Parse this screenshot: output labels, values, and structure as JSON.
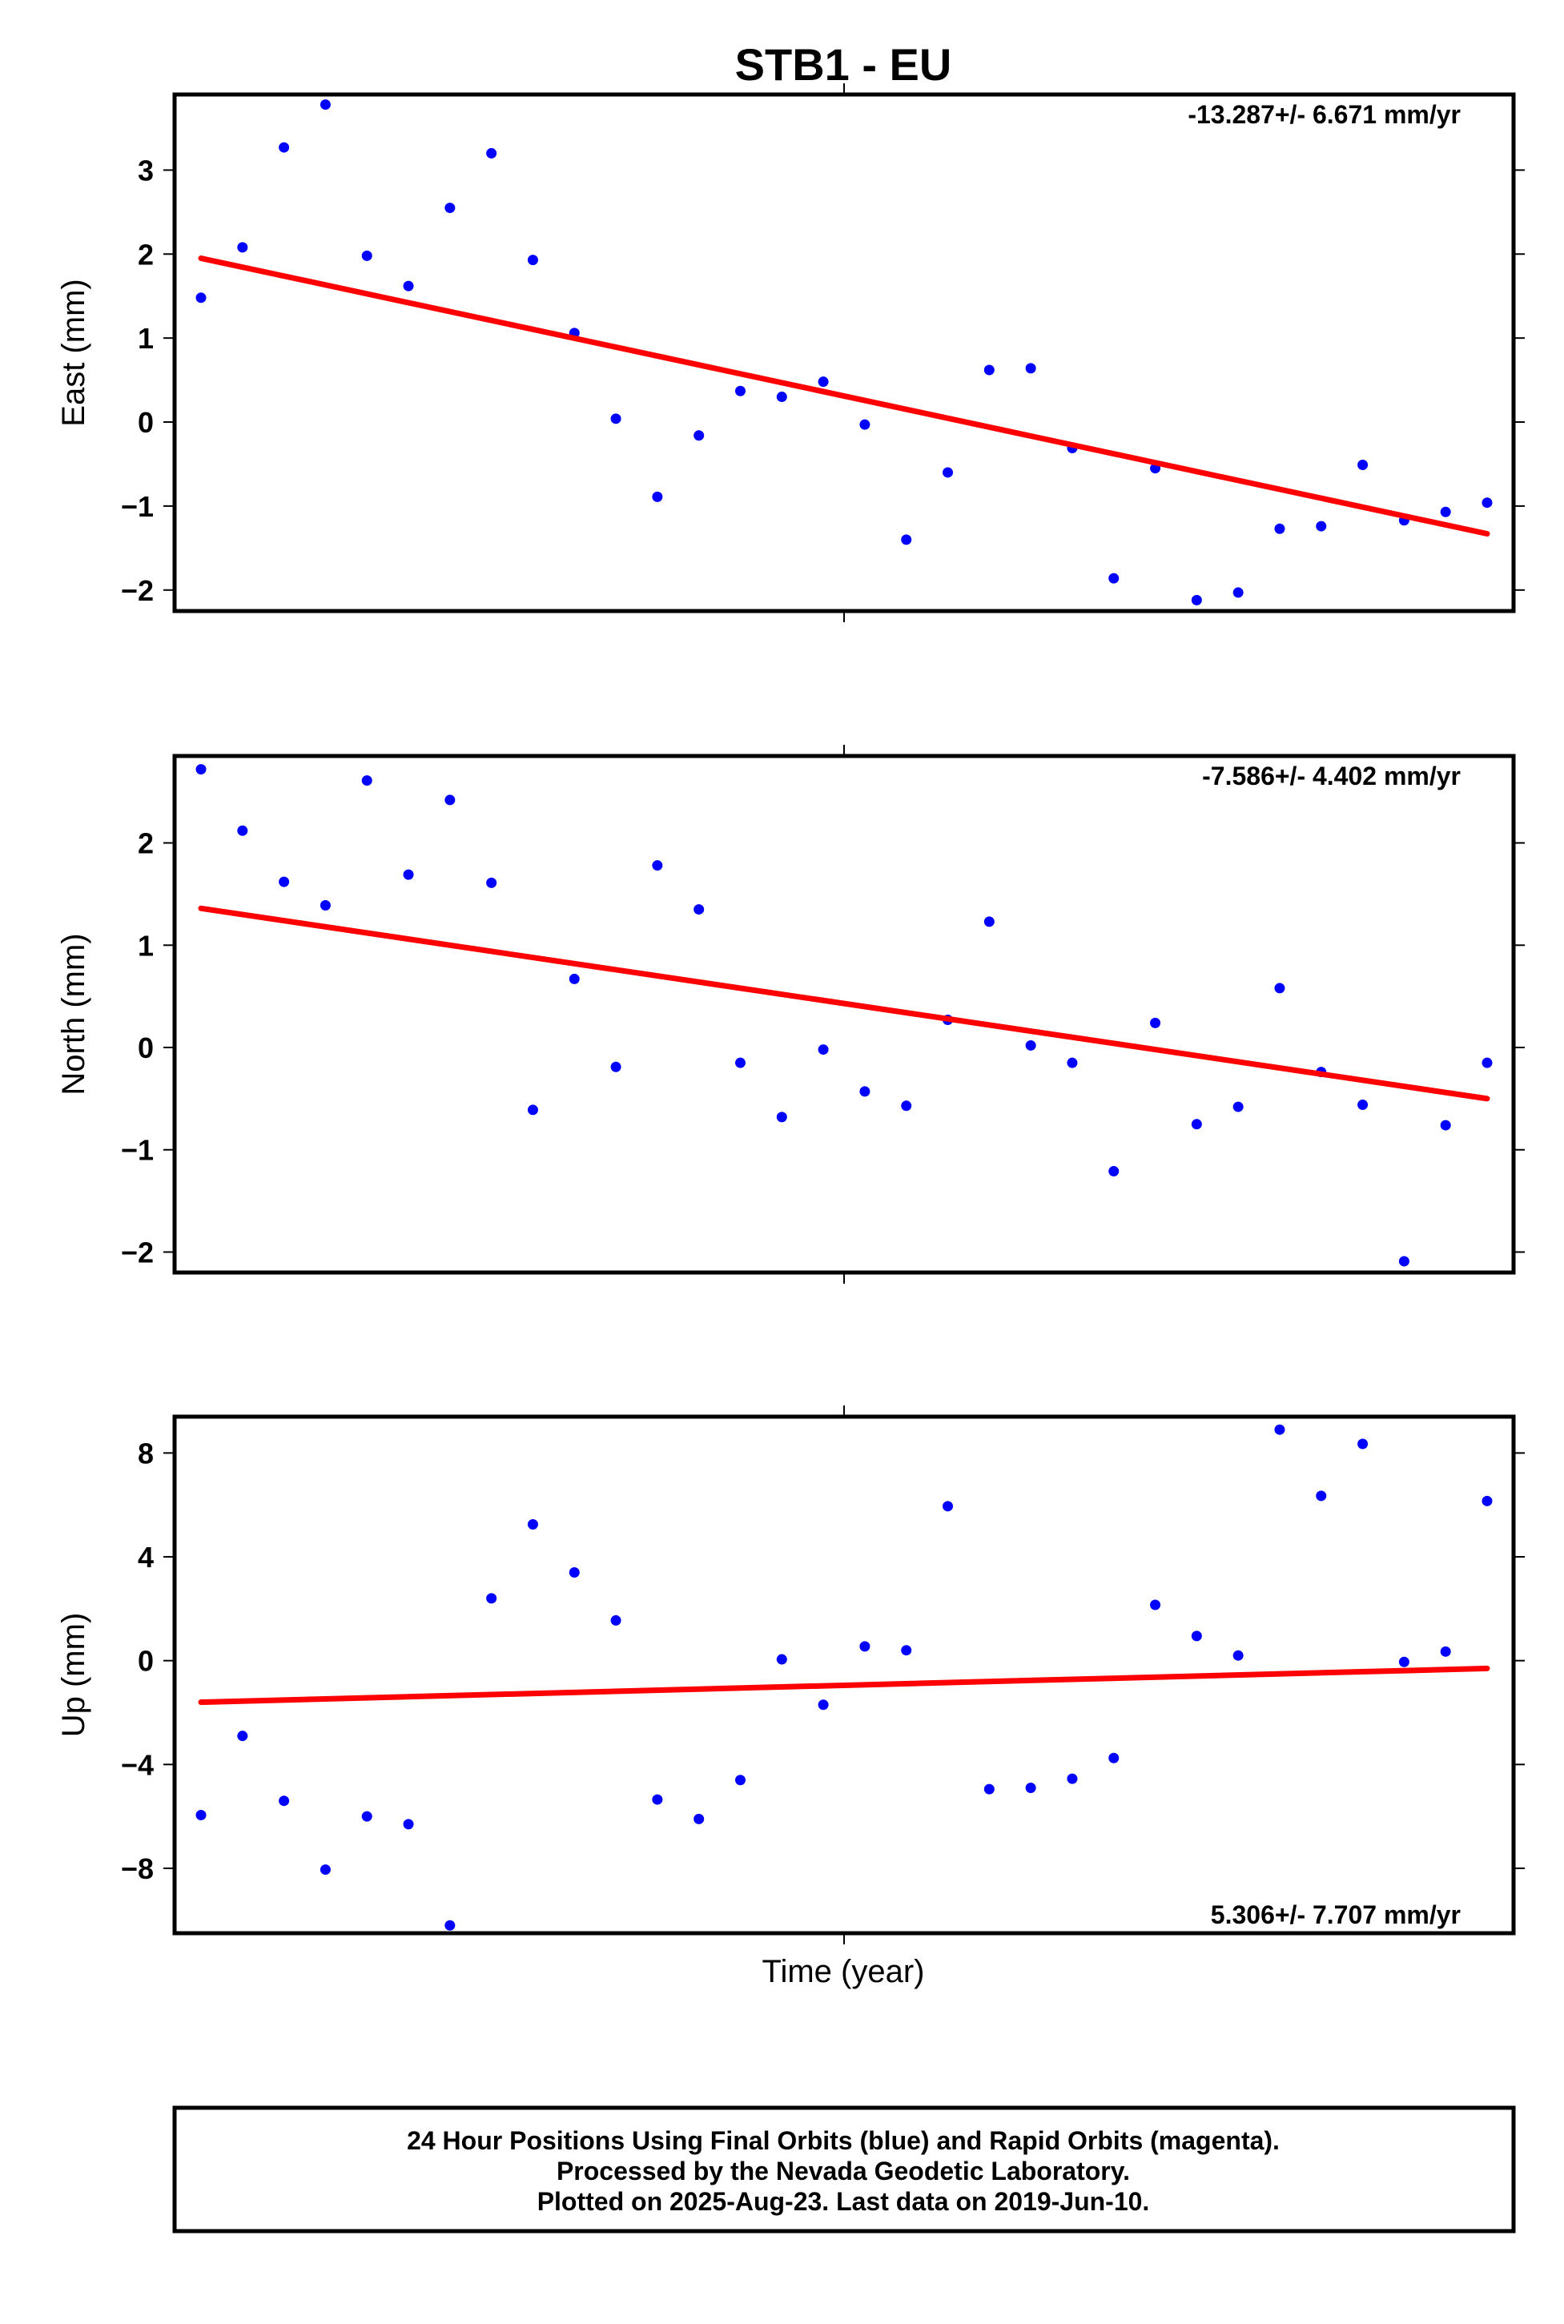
{
  "title": "STB1 - EU",
  "xlabel": "Time (year)",
  "footer": {
    "line1": "24 Hour Positions Using Final Orbits (blue) and Rapid Orbits (magenta).",
    "line2": "Processed by the Nevada Geodetic Laboratory.",
    "line3": "Plotted on 2025-Aug-23. Last data on 2019-Jun-10."
  },
  "colors": {
    "points": "#0000ff",
    "trend": "#ff0000",
    "frame": "#000000"
  },
  "chart_data": [
    {
      "type": "scatter",
      "ylabel": "East (mm)",
      "rate_text": "-13.287+/- 6.671 mm/yr",
      "rate_position": "top-right",
      "ylim": [
        -2.25,
        3.9
      ],
      "yticks": [
        3,
        2,
        1,
        0,
        -1,
        -2
      ],
      "ytick_labels": [
        "3",
        "2",
        "1",
        "0",
        "−1",
        "−2"
      ],
      "series": [
        {
          "values": [
            1.48,
            2.08,
            3.27,
            3.78,
            1.98,
            1.62,
            2.55,
            3.2,
            1.93,
            1.06,
            0.04,
            -0.89,
            -0.16,
            0.37,
            0.3,
            0.48,
            -0.03,
            -1.4,
            -0.6,
            0.62,
            0.64,
            -0.31,
            -1.86,
            -0.55,
            -2.12,
            -2.03,
            -1.27,
            -1.24,
            -0.51,
            -1.17,
            -1.07,
            -0.96
          ]
        }
      ],
      "trend": [
        1.95,
        -1.33
      ]
    },
    {
      "type": "scatter",
      "ylabel": "North (mm)",
      "rate_text": "-7.586+/- 4.402 mm/yr",
      "rate_position": "top-right",
      "ylim": [
        -2.2,
        2.85
      ],
      "yticks": [
        2,
        1,
        0,
        -1,
        -2
      ],
      "ytick_labels": [
        "2",
        "1",
        "0",
        "−1",
        "−2"
      ],
      "series": [
        {
          "values": [
            2.72,
            2.12,
            1.62,
            1.39,
            2.61,
            1.69,
            2.42,
            1.61,
            -0.61,
            0.67,
            -0.19,
            1.78,
            1.35,
            -0.15,
            -0.68,
            -0.02,
            -0.43,
            -0.57,
            0.27,
            1.23,
            0.02,
            -0.15,
            -1.21,
            0.24,
            -0.75,
            -0.58,
            0.58,
            -0.24,
            -0.56,
            -2.09,
            -0.76,
            -0.15
          ]
        }
      ],
      "trend": [
        1.36,
        -0.5
      ]
    },
    {
      "type": "scatter",
      "ylabel": "Up (mm)",
      "rate_text": "5.306+/- 7.707 mm/yr",
      "rate_position": "bottom-right",
      "ylim": [
        -10.5,
        9.4
      ],
      "yticks": [
        8,
        4,
        0,
        -4,
        -8
      ],
      "ytick_labels": [
        "8",
        "4",
        "0",
        "−4",
        "−8"
      ],
      "series": [
        {
          "values": [
            -5.95,
            -2.9,
            -5.4,
            -8.05,
            -6.0,
            -6.3,
            -10.2,
            2.4,
            5.25,
            3.4,
            1.55,
            -5.35,
            -6.1,
            -4.6,
            0.05,
            -1.7,
            0.55,
            0.4,
            5.95,
            -4.95,
            -4.9,
            -4.55,
            -3.75,
            2.15,
            0.95,
            0.2,
            8.9,
            6.35,
            8.35,
            -0.05,
            0.35,
            6.15
          ]
        }
      ],
      "trend": [
        -1.6,
        -0.3
      ]
    }
  ]
}
